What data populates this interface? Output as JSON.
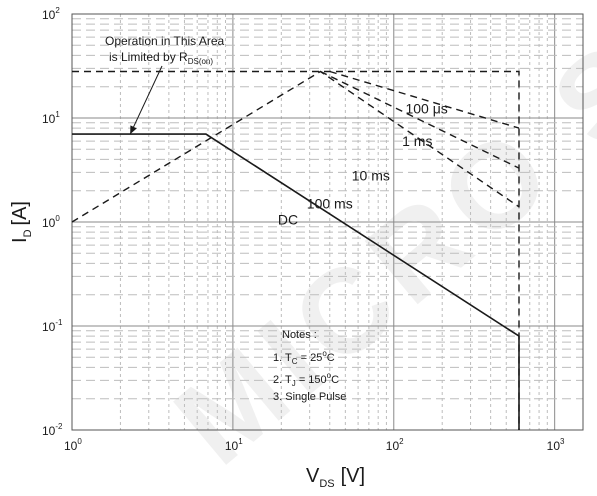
{
  "chart_data": {
    "type": "line",
    "title": "",
    "x_scale": "log",
    "y_scale": "log",
    "xlim": [
      1,
      1500
    ],
    "ylim": [
      0.01,
      100
    ],
    "grid": true,
    "x_ticks": [
      {
        "value": 1,
        "base": "10",
        "exp": "0"
      },
      {
        "value": 10,
        "base": "10",
        "exp": "1"
      },
      {
        "value": 100,
        "base": "10",
        "exp": "2"
      },
      {
        "value": 1000,
        "base": "10",
        "exp": "3"
      }
    ],
    "y_ticks": [
      {
        "value": 0.01,
        "base": "10",
        "exp": "-2"
      },
      {
        "value": 0.1,
        "base": "10",
        "exp": "-1"
      },
      {
        "value": 1,
        "base": "10",
        "exp": "0"
      },
      {
        "value": 10,
        "base": "10",
        "exp": "1"
      },
      {
        "value": 100,
        "base": "10",
        "exp": "2"
      }
    ],
    "xlabel": {
      "main": "V",
      "sub": "DS",
      "unit": "[V]"
    },
    "ylabel": {
      "main": "I",
      "sub": "D",
      "unit": "[A]"
    },
    "series": [
      {
        "name": "DC",
        "style": "solid",
        "points": [
          [
            1,
            7
          ],
          [
            6.8,
            7
          ],
          [
            600,
            0.08
          ],
          [
            600,
            0.01
          ]
        ]
      },
      {
        "name": "100 ms",
        "style": "dashed",
        "points": [
          [
            1,
            1
          ],
          [
            35,
            28
          ],
          [
            600,
            1.4
          ]
        ]
      },
      {
        "name": "10 ms",
        "style": "dashed",
        "points": [
          [
            35,
            28
          ],
          [
            600,
            3.3
          ]
        ]
      },
      {
        "name": "1 ms",
        "style": "dashed",
        "points": [
          [
            40,
            28
          ],
          [
            600,
            8
          ]
        ]
      },
      {
        "name": "100 µs",
        "style": "dashed",
        "points": [
          [
            1,
            28
          ],
          [
            600,
            28
          ],
          [
            600,
            0.01
          ]
        ]
      }
    ],
    "curve_labels": [
      {
        "text": "100 μs",
        "x": 160,
        "y": 11
      },
      {
        "text": "1 ms",
        "x": 140,
        "y": 5.4
      },
      {
        "text": "10 ms",
        "x": 72,
        "y": 2.5
      },
      {
        "text": "100 ms",
        "x": 40,
        "y": 1.35
      },
      {
        "text": "DC",
        "x": 22,
        "y": 0.95
      }
    ],
    "annotation": {
      "line1": "Operation in This Area",
      "line2_prefix": "is Limited by R",
      "line2_sub": "DS(on)",
      "arrow_to": [
        2.3,
        7
      ]
    },
    "notes": {
      "title": "Notes :",
      "n1_prefix": "1. T",
      "n1_sub": "C",
      "n1_value": " = 25",
      "n1_deg": "o",
      "n1_unit": "C",
      "n2_prefix": "2. T",
      "n2_sub": "J",
      "n2_value": " = 150",
      "n2_deg": "o",
      "n2_unit": "C",
      "n3": "3. Single Pulse"
    }
  },
  "watermark_text": "MICRO S"
}
